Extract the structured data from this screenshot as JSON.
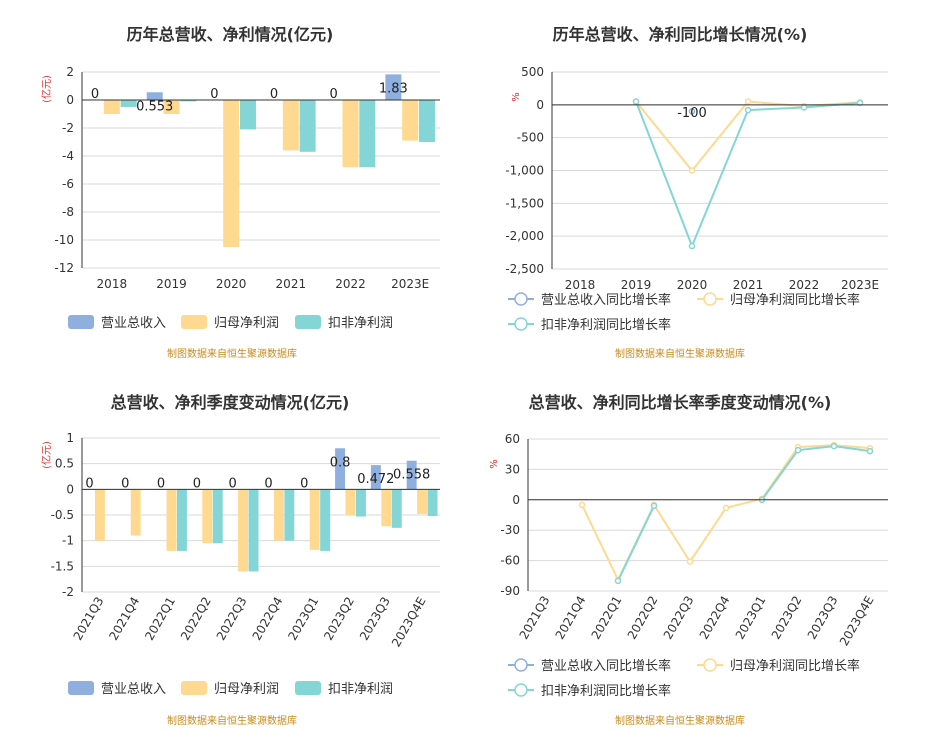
{
  "source_note": "制图数据来自恒生聚源数据库",
  "colors": {
    "revenue": "#8fb0de",
    "parent_profit": "#ffd98f",
    "deducted_profit": "#84d6d6",
    "grid": "#d9d9d9",
    "axis": "#333333"
  },
  "chart_data": [
    {
      "id": "annual_amounts",
      "type": "bar",
      "title": "历年总营收、净利情况(亿元)",
      "unit": "(亿元)",
      "categories": [
        "2018",
        "2019",
        "2020",
        "2021",
        "2022",
        "2023E"
      ],
      "ylim": [
        -12,
        2
      ],
      "yticks": [
        2,
        0,
        -2,
        -4,
        -6,
        -8,
        -10,
        -12
      ],
      "series": [
        {
          "name": "营业总收入",
          "values": [
            0,
            0.553,
            0,
            0,
            0,
            1.83
          ]
        },
        {
          "name": "归母净利润",
          "values": [
            -1.0,
            -1.0,
            -10.5,
            -3.6,
            -4.8,
            -2.9
          ]
        },
        {
          "name": "扣非净利润",
          "values": [
            -0.5,
            -0.1,
            -2.1,
            -3.7,
            -4.8,
            -3.0
          ]
        }
      ],
      "data_labels": [
        "0",
        "0.553",
        "0",
        "0",
        "0",
        "1.83"
      ]
    },
    {
      "id": "annual_growth",
      "type": "line",
      "title": "历年总营收、净利同比增长情况(%)",
      "unit": "%",
      "categories": [
        "2018",
        "2019",
        "2020",
        "2021",
        "2022",
        "2023E"
      ],
      "ylim": [
        -2500,
        500
      ],
      "yticks": [
        500,
        0,
        -500,
        -1000,
        -1500,
        -2000,
        -2500
      ],
      "ytick_labels": [
        "500",
        "0",
        "-500",
        "-1,000",
        "-1,500",
        "-2,000",
        "-2,500"
      ],
      "series": [
        {
          "name": "营业总收入同比增长率",
          "values": [
            null,
            null,
            -100,
            null,
            null,
            null
          ]
        },
        {
          "name": "归母净利润同比增长率",
          "values": [
            null,
            50,
            -1000,
            50,
            -20,
            40
          ]
        },
        {
          "name": "扣非净利润同比增长率",
          "values": [
            null,
            50,
            -2150,
            -80,
            -40,
            30
          ]
        }
      ],
      "data_labels": [
        "-100"
      ]
    },
    {
      "id": "quarterly_amounts",
      "type": "bar",
      "title": "总营收、净利季度变动情况(亿元)",
      "unit": "(亿元)",
      "categories": [
        "2021Q3",
        "2021Q4",
        "2022Q1",
        "2022Q2",
        "2022Q3",
        "2022Q4",
        "2023Q1",
        "2023Q2",
        "2023Q3",
        "2023Q4E"
      ],
      "ylim": [
        -2,
        1
      ],
      "yticks": [
        1,
        0.5,
        0,
        -0.5,
        -1,
        -1.5,
        -2
      ],
      "ytick_labels": [
        "1",
        "0.5",
        "0",
        "-0.5",
        "-1",
        "-1.5",
        "-2"
      ],
      "series": [
        {
          "name": "营业总收入",
          "values": [
            0,
            0,
            0,
            0,
            0,
            0,
            0,
            0.8,
            0.472,
            0.558
          ]
        },
        {
          "name": "归母净利润",
          "values": [
            -1.0,
            -0.9,
            -1.2,
            -1.05,
            -1.6,
            -1.0,
            -1.18,
            -0.5,
            -0.72,
            -0.48
          ]
        },
        {
          "name": "扣非净利润",
          "values": [
            null,
            null,
            -1.2,
            -1.05,
            -1.6,
            -1.0,
            -1.2,
            -0.53,
            -0.75,
            -0.52
          ]
        }
      ],
      "data_labels": [
        "0",
        "0",
        "0",
        "0",
        "0",
        "0",
        "0",
        "0.8",
        "0.472",
        "0.558"
      ]
    },
    {
      "id": "quarterly_growth",
      "type": "line",
      "title": "总营收、净利同比增长率季度变动情况(%)",
      "unit": "%",
      "categories": [
        "2021Q3",
        "2021Q4",
        "2022Q1",
        "2022Q2",
        "2022Q3",
        "2022Q4",
        "2023Q1",
        "2023Q2",
        "2023Q3",
        "2023Q4E"
      ],
      "ylim": [
        -90,
        60
      ],
      "yticks": [
        60,
        30,
        0,
        -30,
        -60,
        -90
      ],
      "ytick_labels": [
        "60",
        "30",
        "0",
        "-30",
        "-60",
        "-90"
      ],
      "series": [
        {
          "name": "营业总收入同比增长率",
          "values": [
            null,
            null,
            null,
            null,
            null,
            null,
            null,
            null,
            null,
            null
          ]
        },
        {
          "name": "归母净利润同比增长率",
          "values": [
            null,
            -5,
            -79,
            -5,
            -61,
            -8,
            1,
            52,
            54,
            51
          ]
        },
        {
          "name": "扣非净利润同比增长率",
          "values": [
            null,
            null,
            -80,
            -6,
            null,
            null,
            0,
            49,
            53,
            48
          ]
        }
      ],
      "data_labels": []
    }
  ]
}
